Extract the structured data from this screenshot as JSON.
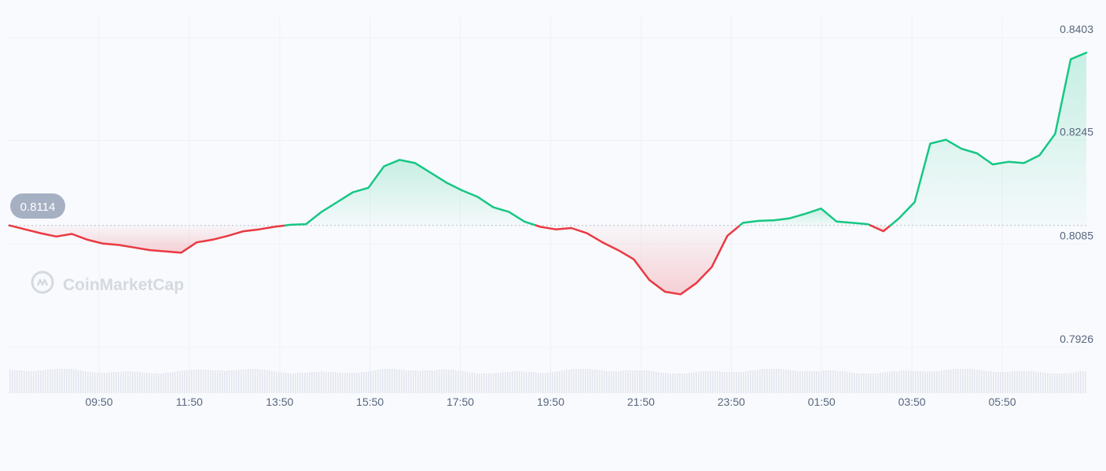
{
  "watermark": "CoinMarketCap",
  "reference_label": "0.8114",
  "colors": {
    "up": "#16c784",
    "down": "#ea3943",
    "grid": "#eff2f5",
    "text": "#58667e",
    "badge": "#a6b0c3"
  },
  "chart_data": {
    "type": "line",
    "title": "",
    "xlabel": "",
    "ylabel": "",
    "baseline": 0.8114,
    "ylim": [
      0.7926,
      0.8403
    ],
    "yticks": [
      "0.8403",
      "0.8245",
      "0.8085",
      "0.7926"
    ],
    "xticks": [
      "09:50",
      "11:50",
      "13:50",
      "15:50",
      "17:50",
      "19:50",
      "21:50",
      "23:50",
      "01:50",
      "03:50",
      "05:50"
    ],
    "grid": true,
    "x": [
      "07:50",
      "08:10",
      "08:30",
      "08:50",
      "09:10",
      "09:30",
      "09:50",
      "10:10",
      "10:30",
      "10:50",
      "11:10",
      "11:30",
      "11:50",
      "12:10",
      "12:30",
      "12:50",
      "13:10",
      "13:30",
      "13:50",
      "14:10",
      "14:30",
      "14:50",
      "15:10",
      "15:30",
      "15:50",
      "16:10",
      "16:30",
      "16:50",
      "17:10",
      "17:30",
      "17:50",
      "18:10",
      "18:30",
      "18:50",
      "19:10",
      "19:30",
      "19:50",
      "20:10",
      "20:30",
      "20:50",
      "21:10",
      "21:30",
      "21:50",
      "22:10",
      "22:30",
      "22:50",
      "23:10",
      "23:30",
      "23:50",
      "00:10",
      "00:30",
      "00:50",
      "01:10",
      "01:30",
      "01:50",
      "02:10",
      "02:30",
      "02:50",
      "03:10",
      "03:30",
      "03:50",
      "04:10",
      "04:30",
      "04:50",
      "05:10",
      "05:30",
      "05:50",
      "06:10",
      "06:30",
      "06:50"
    ],
    "values": [
      0.8114,
      0.8108,
      0.8102,
      0.8097,
      0.8101,
      0.8092,
      0.8086,
      0.8084,
      0.808,
      0.8076,
      0.8074,
      0.8072,
      0.8088,
      0.8092,
      0.8098,
      0.8105,
      0.8108,
      0.8112,
      0.8115,
      0.8116,
      0.8135,
      0.815,
      0.8165,
      0.8172,
      0.8205,
      0.8215,
      0.821,
      0.8195,
      0.818,
      0.8168,
      0.8158,
      0.8142,
      0.8135,
      0.812,
      0.8112,
      0.8108,
      0.811,
      0.8102,
      0.8088,
      0.8076,
      0.8062,
      0.803,
      0.8012,
      0.8008,
      0.8025,
      0.805,
      0.8098,
      0.8118,
      0.8121,
      0.8122,
      0.8125,
      0.8132,
      0.814,
      0.812,
      0.8118,
      0.8116,
      0.8105,
      0.8125,
      0.815,
      0.824,
      0.8246,
      0.8232,
      0.8225,
      0.8208,
      0.8212,
      0.821,
      0.8222,
      0.8255,
      0.837,
      0.838
    ]
  }
}
